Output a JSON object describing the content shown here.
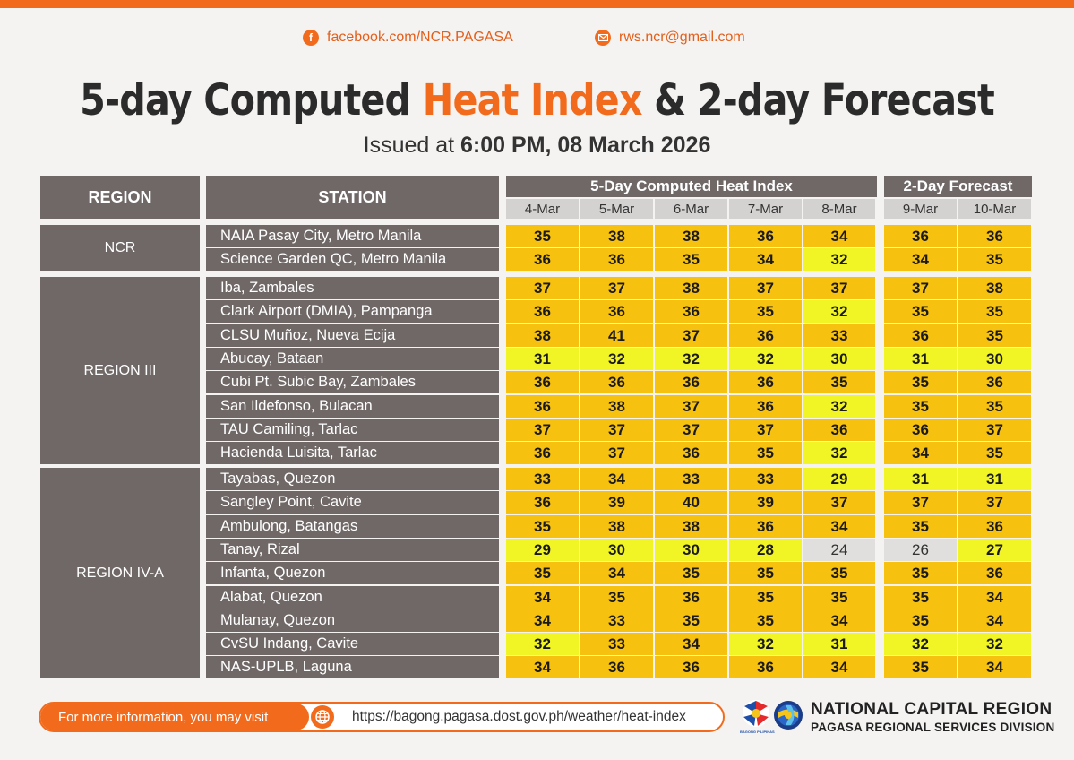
{
  "contacts": {
    "facebook_icon": "facebook-icon",
    "facebook": "facebook.com/NCR.PAGASA",
    "email_icon": "mail-icon",
    "email": "rws.ncr@gmail.com"
  },
  "title": {
    "part1": "5-day Computed ",
    "highlight": "Heat Index",
    "part2": " & 2-day Forecast"
  },
  "issued": {
    "prefix": "Issued at ",
    "value": "6:00 PM, 08 March 2026"
  },
  "table": {
    "header_region": "REGION",
    "header_station": "STATION",
    "header_computed": "5-Day Computed Heat Index",
    "header_forecast": "2-Day Forecast",
    "dates": [
      "4-Mar",
      "5-Mar",
      "6-Mar",
      "7-Mar",
      "8-Mar",
      "9-Mar",
      "10-Mar"
    ],
    "regions": [
      {
        "name": "NCR",
        "stations": [
          {
            "station": "NAIA Pasay City, Metro Manila",
            "values": [
              35,
              38,
              38,
              36,
              34,
              36,
              36
            ]
          },
          {
            "station": "Science Garden QC, Metro Manila",
            "values": [
              36,
              36,
              35,
              34,
              32,
              34,
              35
            ]
          }
        ]
      },
      {
        "name": "REGION III",
        "stations": [
          {
            "station": "Iba, Zambales",
            "values": [
              37,
              37,
              38,
              37,
              37,
              37,
              38
            ]
          },
          {
            "station": "Clark Airport (DMIA), Pampanga",
            "values": [
              36,
              36,
              36,
              35,
              32,
              35,
              35
            ]
          },
          {
            "station": "CLSU Muñoz, Nueva Ecija",
            "values": [
              38,
              41,
              37,
              36,
              33,
              36,
              35
            ]
          },
          {
            "station": "Abucay, Bataan",
            "values": [
              31,
              32,
              32,
              32,
              30,
              31,
              30
            ]
          },
          {
            "station": "Cubi Pt. Subic Bay, Zambales",
            "values": [
              36,
              36,
              36,
              36,
              35,
              35,
              36
            ]
          },
          {
            "station": "San Ildefonso, Bulacan",
            "values": [
              36,
              38,
              37,
              36,
              32,
              35,
              35
            ]
          },
          {
            "station": "TAU Camiling, Tarlac",
            "values": [
              37,
              37,
              37,
              37,
              36,
              36,
              37
            ]
          },
          {
            "station": "Hacienda Luisita, Tarlac",
            "values": [
              36,
              37,
              36,
              35,
              32,
              34,
              35
            ]
          }
        ]
      },
      {
        "name": "REGION IV-A",
        "stations": [
          {
            "station": "Tayabas, Quezon",
            "values": [
              33,
              34,
              33,
              33,
              29,
              31,
              31
            ]
          },
          {
            "station": "Sangley Point, Cavite",
            "values": [
              36,
              39,
              40,
              39,
              37,
              37,
              37
            ]
          },
          {
            "station": "Ambulong, Batangas",
            "values": [
              35,
              38,
              38,
              36,
              34,
              35,
              36
            ]
          },
          {
            "station": "Tanay, Rizal",
            "values": [
              29,
              30,
              30,
              28,
              24,
              26,
              27
            ]
          },
          {
            "station": "Infanta, Quezon",
            "values": [
              35,
              34,
              35,
              35,
              35,
              35,
              36
            ]
          },
          {
            "station": "Alabat, Quezon",
            "values": [
              34,
              35,
              36,
              35,
              35,
              35,
              34
            ]
          },
          {
            "station": "Mulanay, Quezon",
            "values": [
              34,
              33,
              35,
              35,
              34,
              35,
              34
            ]
          },
          {
            "station": "CvSU Indang, Cavite",
            "values": [
              32,
              33,
              34,
              32,
              31,
              32,
              32
            ]
          },
          {
            "station": "NAS-UPLB, Laguna",
            "values": [
              34,
              36,
              36,
              36,
              34,
              35,
              34
            ]
          }
        ]
      }
    ],
    "colors": {
      "orange": "#f7c10f",
      "yellow": "#f2f525",
      "gray": "#e0dfde",
      "header": "#6f6867",
      "accent": "#f26b1d"
    }
  },
  "footer": {
    "prompt": "For more information, you may visit",
    "globe_icon": "globe-icon",
    "url": "https://bagong.pagasa.dost.gov.ph/weather/heat-index",
    "logo_caption": "BAGONG PILIPINAS",
    "org_line1": "NATIONAL CAPITAL REGION",
    "org_line2": "PAGASA REGIONAL SERVICES DIVISION"
  }
}
